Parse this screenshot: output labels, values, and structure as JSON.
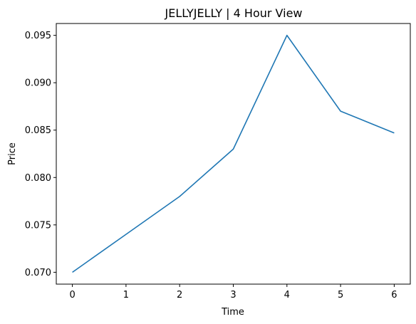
{
  "chart_data": {
    "type": "line",
    "title": "JELLYJELLY | 4 Hour View",
    "xlabel": "Time",
    "ylabel": "Price",
    "x": [
      0,
      1,
      2,
      3,
      4,
      5,
      6
    ],
    "series": [
      {
        "values": [
          0.07,
          0.074,
          0.078,
          0.083,
          0.095,
          0.087,
          0.0847
        ],
        "color": "#1f77b4"
      }
    ],
    "xticks": [
      0,
      1,
      2,
      3,
      4,
      5,
      6
    ],
    "xtick_labels": [
      "0",
      "1",
      "2",
      "3",
      "4",
      "5",
      "6"
    ],
    "yticks": [
      0.07,
      0.075,
      0.08,
      0.085,
      0.09,
      0.095
    ],
    "ytick_labels": [
      "0.070",
      "0.075",
      "0.080",
      "0.085",
      "0.090",
      "0.095"
    ],
    "xlim": [
      -0.3,
      6.3
    ],
    "ylim": [
      0.06875,
      0.09625
    ],
    "grid": false,
    "legend": "none"
  }
}
